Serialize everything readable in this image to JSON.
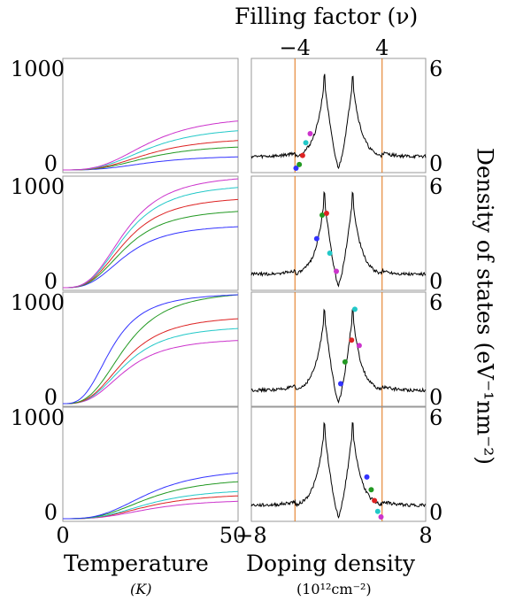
{
  "figure": {
    "top_xlabel": "Filling factor (ν)",
    "top_ticks": [
      "−4",
      "4"
    ],
    "right_ylabel": "Density of states (eV⁻¹nm⁻²)",
    "left_xlabel": "Temperature",
    "left_xunit": "(K)",
    "right_xlabel": "Doping density",
    "right_xunit": "(10¹²cm⁻²)"
  },
  "colors": {
    "series": [
      "#3333ff",
      "#dd2222",
      "#229922",
      "#22c8c8",
      "#cc33cc"
    ],
    "vline": "#e07010",
    "dos": "#000000",
    "axis": "#999999"
  },
  "chart_data": [
    {
      "type": "line",
      "panel": "heat-capacity-1",
      "xlim": [
        0,
        50
      ],
      "ylim": [
        0,
        1000
      ],
      "ytick_labels": [
        "1000",
        "0"
      ],
      "xtick_labels": [],
      "series": [
        {
          "color": "#3333ff",
          "values_at_50": 120,
          "onset": 8,
          "scale": 25
        },
        {
          "color": "#229922",
          "values_at_50": 210,
          "onset": 8,
          "scale": 25
        },
        {
          "color": "#dd2222",
          "values_at_50": 270,
          "onset": 8,
          "scale": 25
        },
        {
          "color": "#22c8c8",
          "values_at_50": 360,
          "onset": 8,
          "scale": 25
        },
        {
          "color": "#cc33cc",
          "values_at_50": 450,
          "onset": 8,
          "scale": 25
        }
      ]
    },
    {
      "type": "line",
      "panel": "heat-capacity-2",
      "xlim": [
        0,
        50
      ],
      "ylim": [
        0,
        1000
      ],
      "ytick_labels": [
        "1000",
        "0"
      ],
      "xtick_labels": [],
      "series": [
        {
          "color": "#3333ff",
          "values_at_50": 560,
          "onset": 10,
          "scale": 18
        },
        {
          "color": "#229922",
          "values_at_50": 700,
          "onset": 10,
          "scale": 18
        },
        {
          "color": "#dd2222",
          "values_at_50": 810,
          "onset": 10,
          "scale": 18
        },
        {
          "color": "#22c8c8",
          "values_at_50": 920,
          "onset": 10,
          "scale": 18
        },
        {
          "color": "#cc33cc",
          "values_at_50": 1000,
          "onset": 10,
          "scale": 18
        }
      ]
    },
    {
      "type": "line",
      "panel": "heat-capacity-3",
      "xlim": [
        0,
        50
      ],
      "ylim": [
        0,
        1000
      ],
      "ytick_labels": [
        "1000",
        "0"
      ],
      "xtick_labels": [],
      "series": [
        {
          "color": "#cc33cc",
          "values_at_50": 580,
          "onset": 10,
          "scale": 18
        },
        {
          "color": "#22c8c8",
          "values_at_50": 690,
          "onset": 10,
          "scale": 18
        },
        {
          "color": "#dd2222",
          "values_at_50": 780,
          "onset": 10,
          "scale": 18
        },
        {
          "color": "#229922",
          "values_at_50": 1000,
          "onset": 10,
          "scale": 18
        },
        {
          "color": "#3333ff",
          "values_at_50": 1000,
          "onset": 10,
          "scale": 14
        }
      ]
    },
    {
      "type": "line",
      "panel": "heat-capacity-4",
      "xlim": [
        0,
        50
      ],
      "ylim": [
        0,
        1000
      ],
      "ytick_labels": [
        "1000",
        "0"
      ],
      "xtick_labels": [
        "0",
        "50"
      ],
      "series": [
        {
          "color": "#cc33cc",
          "values_at_50": 160,
          "onset": 8,
          "scale": 25
        },
        {
          "color": "#dd2222",
          "values_at_50": 210,
          "onset": 8,
          "scale": 25
        },
        {
          "color": "#22c8c8",
          "values_at_50": 250,
          "onset": 8,
          "scale": 25
        },
        {
          "color": "#229922",
          "values_at_50": 340,
          "onset": 8,
          "scale": 25
        },
        {
          "color": "#3333ff",
          "values_at_50": 420,
          "onset": 8,
          "scale": 25
        }
      ]
    },
    {
      "type": "line",
      "panel": "dos-1",
      "xlim": [
        -8,
        8
      ],
      "ylim": [
        0,
        6
      ],
      "ytick_labels": [
        "6",
        "0"
      ],
      "xtick_labels": [],
      "vlines": [
        -4,
        4
      ],
      "points": [
        {
          "x": -3.9,
          "y": 0.1,
          "color": "#3333ff"
        },
        {
          "x": -3.6,
          "y": 0.3,
          "color": "#229922"
        },
        {
          "x": -3.3,
          "y": 0.8,
          "color": "#dd2222"
        },
        {
          "x": -3.0,
          "y": 1.5,
          "color": "#22c8c8"
        },
        {
          "x": -2.6,
          "y": 2.0,
          "color": "#cc33cc"
        }
      ]
    },
    {
      "type": "line",
      "panel": "dos-2",
      "xlim": [
        -8,
        8
      ],
      "ylim": [
        0,
        6
      ],
      "ytick_labels": [
        "6",
        "0"
      ],
      "xtick_labels": [],
      "vlines": [
        -4,
        4
      ],
      "points": [
        {
          "x": -2.0,
          "y": 2.7,
          "color": "#3333ff"
        },
        {
          "x": -1.5,
          "y": 4.0,
          "color": "#229922"
        },
        {
          "x": -1.1,
          "y": 4.1,
          "color": "#dd2222"
        },
        {
          "x": -0.8,
          "y": 1.9,
          "color": "#22c8c8"
        },
        {
          "x": -0.2,
          "y": 0.9,
          "color": "#cc33cc"
        }
      ]
    },
    {
      "type": "line",
      "panel": "dos-3",
      "xlim": [
        -8,
        8
      ],
      "ylim": [
        0,
        6
      ],
      "ytick_labels": [
        "6",
        "0"
      ],
      "xtick_labels": [],
      "vlines": [
        -4,
        4
      ],
      "points": [
        {
          "x": 0.2,
          "y": 1.1,
          "color": "#3333ff"
        },
        {
          "x": 0.6,
          "y": 2.3,
          "color": "#229922"
        },
        {
          "x": 1.2,
          "y": 3.5,
          "color": "#dd2222"
        },
        {
          "x": 1.5,
          "y": 5.2,
          "color": "#22c8c8"
        },
        {
          "x": 1.9,
          "y": 3.2,
          "color": "#cc33cc"
        }
      ]
    },
    {
      "type": "line",
      "panel": "dos-4",
      "xlim": [
        -8,
        8
      ],
      "ylim": [
        0,
        6
      ],
      "ytick_labels": [
        "6",
        "0"
      ],
      "xtick_labels": [
        "−8",
        "8"
      ],
      "vlines": [
        -4,
        4
      ],
      "points": [
        {
          "x": 2.6,
          "y": 2.3,
          "color": "#3333ff"
        },
        {
          "x": 3.0,
          "y": 1.6,
          "color": "#229922"
        },
        {
          "x": 3.3,
          "y": 1.0,
          "color": "#dd2222"
        },
        {
          "x": 3.6,
          "y": 0.4,
          "color": "#22c8c8"
        },
        {
          "x": 3.9,
          "y": 0.1,
          "color": "#cc33cc"
        }
      ]
    }
  ]
}
